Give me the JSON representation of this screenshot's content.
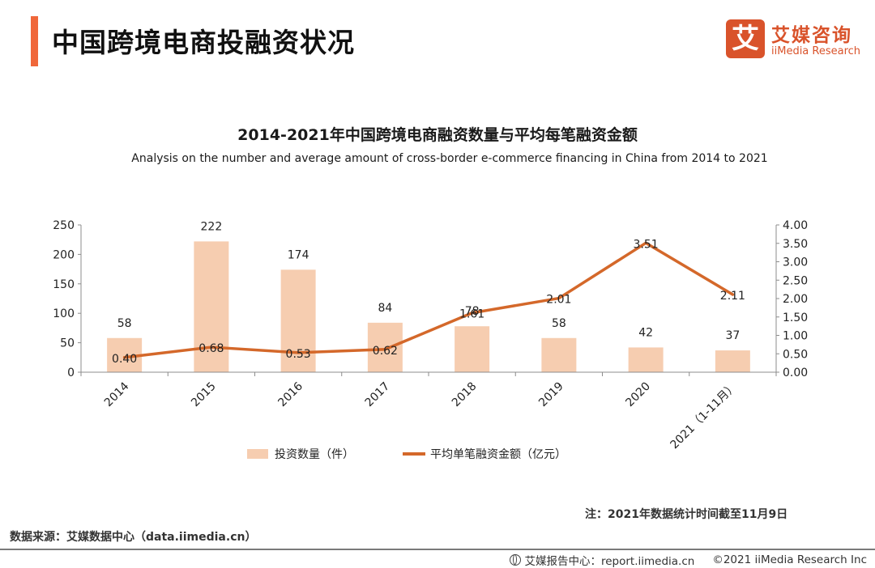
{
  "header": {
    "title": "中国跨境电商投融资状况",
    "logo_mark": "艾",
    "logo_cn": "艾媒咨询",
    "logo_en": "iiMedia Research"
  },
  "colors": {
    "accent": "#f0673a",
    "brand": "#d9532b",
    "bar": "#f6cdb0",
    "line": "#d4682a",
    "axis": "#8c8c8c"
  },
  "chart_data": {
    "type": "bar",
    "title": "2014-2021年中国跨境电商融资数量与平均每笔融资金额",
    "subtitle": "Analysis on the number and average amount of cross-border e-commerce financing in China from 2014 to 2021",
    "categories": [
      "2014",
      "2015",
      "2016",
      "2017",
      "2018",
      "2019",
      "2020",
      "2021（1-11月）"
    ],
    "series": [
      {
        "name": "投资数量（件）",
        "type": "bar",
        "axis": "left",
        "values": [
          58,
          222,
          174,
          84,
          78,
          58,
          42,
          37
        ],
        "labels": [
          "58",
          "222",
          "174",
          "84",
          "78",
          "58",
          "42",
          "37"
        ]
      },
      {
        "name": "平均单笔融资金额（亿元）",
        "type": "line",
        "axis": "right",
        "values": [
          0.4,
          0.68,
          0.53,
          0.62,
          1.61,
          2.01,
          3.51,
          2.11
        ],
        "labels": [
          "0.40",
          "0.68",
          "0.53",
          "0.62",
          "1.61",
          "2.01",
          "3.51",
          "2.11"
        ]
      }
    ],
    "y_left": {
      "range": [
        0,
        250
      ],
      "ticks": [
        "0",
        "50",
        "100",
        "150",
        "200",
        "250"
      ]
    },
    "y_right": {
      "range": [
        0,
        4
      ],
      "ticks": [
        "0.00",
        "0.50",
        "1.00",
        "1.50",
        "2.00",
        "2.50",
        "3.00",
        "3.50",
        "4.00"
      ]
    },
    "xlabel": "",
    "ylabel": "",
    "grid": false,
    "legend_position": "bottom"
  },
  "notes": {
    "note": "注：2021年数据统计时间截至11月9日",
    "source": "数据来源：艾媒数据中心（data.iimedia.cn）"
  },
  "footer": {
    "report_center": "艾媒报告中心：report.iimedia.cn",
    "copyright": "©2021  iiMedia Research  Inc"
  }
}
